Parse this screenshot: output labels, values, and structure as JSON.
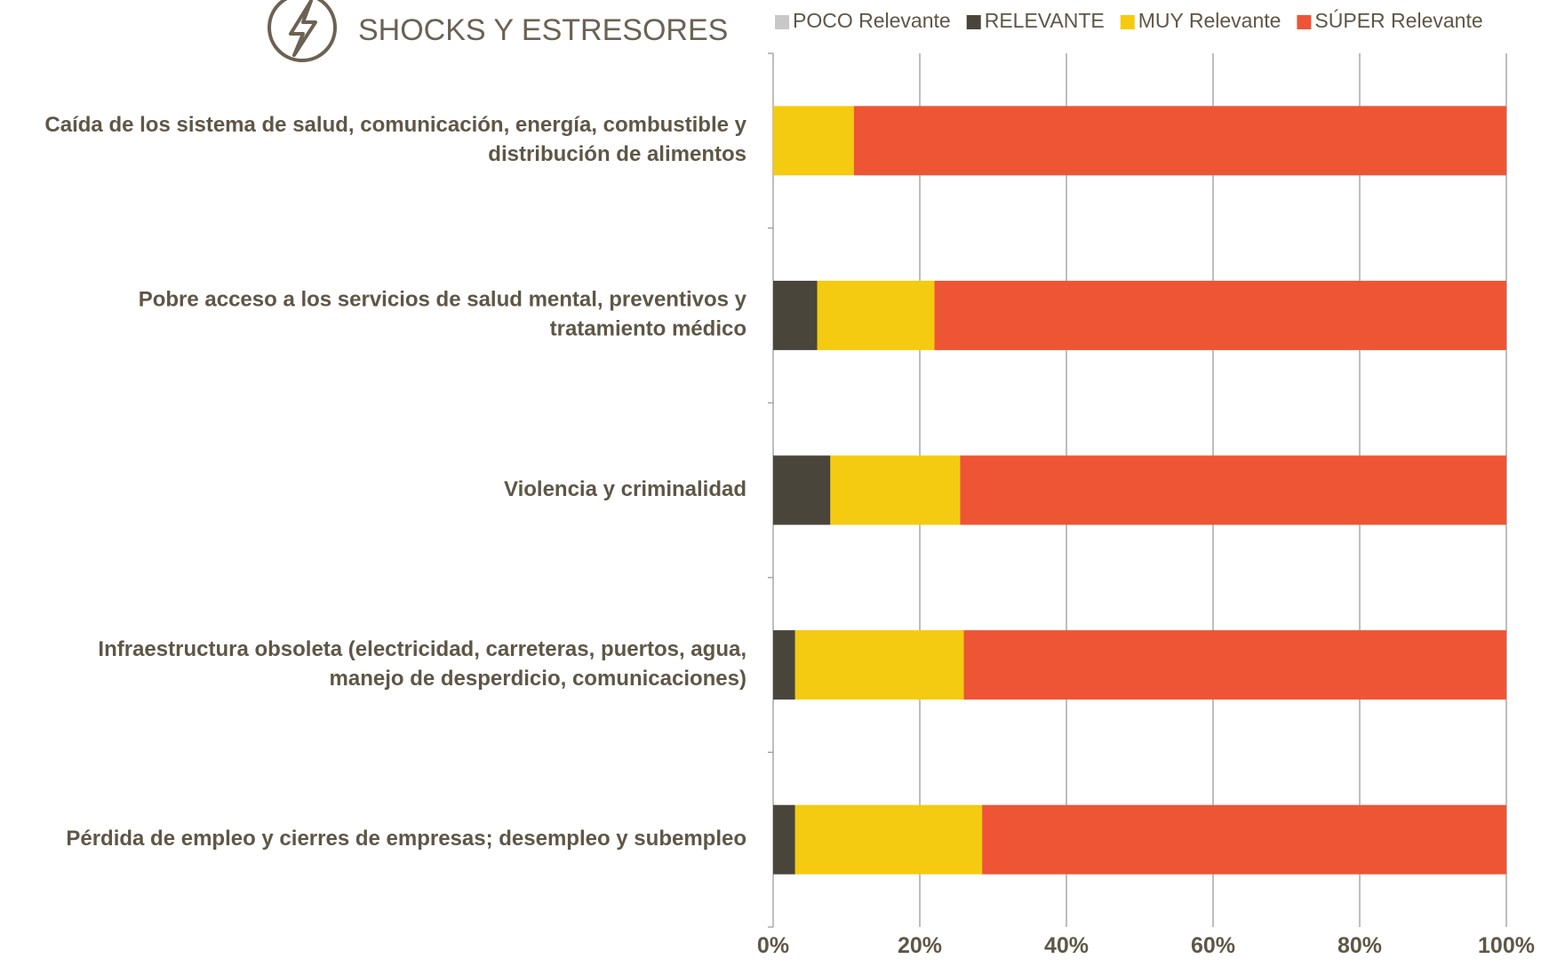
{
  "chart_data": {
    "type": "bar",
    "orientation": "horizontal",
    "stacked": true,
    "title": "SHOCKS Y ESTRESORES",
    "title_icon": "lightning-bolt-icon",
    "categories": [
      [
        "Caída de los sistema de salud, comunicación, energía, combustible y",
        "distribución de alimentos"
      ],
      [
        "Pobre acceso a los servicios de salud mental, preventivos y",
        "tratamiento médico"
      ],
      [
        "Violencia y criminalidad"
      ],
      [
        "Infraestructura obsoleta (electricidad, carreteras, puertos, agua,",
        "manejo de desperdicio, comunicaciones)"
      ],
      [
        "Pérdida de empleo y cierres de empresas; desempleo y subempleo"
      ]
    ],
    "series": [
      {
        "name": "POCO Relevante",
        "color": "#c8c8c8",
        "values": [
          0,
          0,
          0,
          0,
          0
        ]
      },
      {
        "name": "RELEVANTE",
        "color": "#4a453a",
        "values": [
          0,
          6,
          7.8,
          3,
          3
        ]
      },
      {
        "name": "MUY Relevante",
        "color": "#f4cb10",
        "values": [
          11,
          16,
          17.7,
          23,
          25.5
        ]
      },
      {
        "name": "SÚPER Relevante",
        "color": "#ed5535",
        "values": [
          89,
          78,
          74.5,
          74,
          71.5
        ]
      }
    ],
    "xlim": [
      0,
      100
    ],
    "xticks": [
      "0%",
      "20%",
      "40%",
      "60%",
      "80%",
      "100%"
    ],
    "xlabel": "",
    "ylabel": "",
    "grid": true,
    "legend_position": "top"
  },
  "colors": {
    "text": "#5f5647",
    "grid": "#9b9b9b",
    "icon": "#6b6253"
  }
}
